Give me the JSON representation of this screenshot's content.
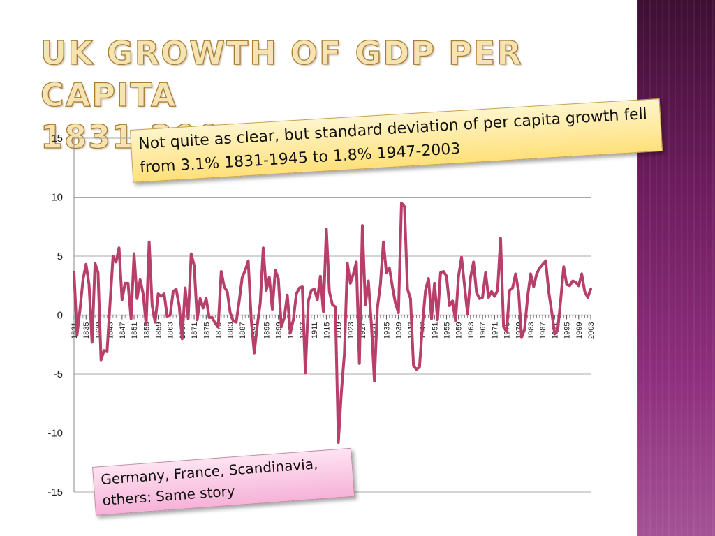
{
  "slide": {
    "title": "UK GROWTH OF GDP PER CAPITA\n1831-2003 (% PER YEAR)"
  },
  "notes": {
    "callout_top": "Not quite as clear, but standard deviation of per capita growth fell from 3.1% 1831-1945 to 1.8% 1947-2003",
    "callout_bottom": "Germany, France, Scandinavia, others: Same story"
  },
  "colors": {
    "series_line": "#b83f6a",
    "accent_band": "#6d1d5e",
    "title_fill": "#f6e3b2"
  },
  "chart_data": {
    "type": "line",
    "title": "",
    "xlabel": "",
    "ylabel": "",
    "ylim": [
      -15,
      15
    ],
    "yticks": [
      15,
      10,
      5,
      0,
      -5,
      -10,
      -15
    ],
    "x_tick_labels": [
      "1831",
      "1835",
      "1839",
      "1843",
      "1847",
      "1851",
      "1855",
      "1859",
      "1863",
      "1867",
      "1871",
      "1875",
      "1879",
      "1883",
      "1887",
      "1891",
      "1895",
      "1899",
      "1903",
      "1907",
      "1911",
      "1915",
      "1919",
      "1923",
      "1927",
      "1931",
      "1935",
      "1939",
      "1943",
      "1947",
      "1951",
      "1955",
      "1959",
      "1963",
      "1967",
      "1971",
      "1975",
      "1979",
      "1983",
      "1987",
      "1991",
      "1995",
      "1999",
      "2003"
    ],
    "grid": "horizontal",
    "legend": "none",
    "series": [
      {
        "x": [
          1831,
          1832,
          1833,
          1834,
          1835,
          1836,
          1837,
          1838,
          1839,
          1840,
          1841,
          1842,
          1843,
          1844,
          1845,
          1846,
          1847,
          1848,
          1849,
          1850,
          1851,
          1852,
          1853,
          1854,
          1855,
          1856,
          1857,
          1858,
          1859,
          1860,
          1861,
          1862,
          1863,
          1864,
          1865,
          1866,
          1867,
          1868,
          1869,
          1870,
          1871,
          1872,
          1873,
          1874,
          1875,
          1876,
          1877,
          1878,
          1879,
          1880,
          1881,
          1882,
          1883,
          1884,
          1885,
          1886,
          1887,
          1888,
          1889,
          1890,
          1891,
          1892,
          1893,
          1894,
          1895,
          1896,
          1897,
          1898,
          1899,
          1900,
          1901,
          1902,
          1903,
          1904,
          1905,
          1906,
          1907,
          1908,
          1909,
          1910,
          1911,
          1912,
          1913,
          1914,
          1915,
          1916,
          1917,
          1918,
          1919,
          1920,
          1921,
          1922,
          1923,
          1924,
          1925,
          1926,
          1927,
          1928,
          1929,
          1930,
          1931,
          1932,
          1933,
          1934,
          1935,
          1936,
          1937,
          1938,
          1939,
          1940,
          1941,
          1942,
          1943,
          1944,
          1945,
          1946,
          1947,
          1948,
          1949,
          1950,
          1951,
          1952,
          1953,
          1954,
          1955,
          1956,
          1957,
          1958,
          1959,
          1960,
          1961,
          1962,
          1963,
          1964,
          1965,
          1966,
          1967,
          1968,
          1969,
          1970,
          1971,
          1972,
          1973,
          1974,
          1975,
          1976,
          1977,
          1978,
          1979,
          1980,
          1981,
          1982,
          1983,
          1984,
          1985,
          1986,
          1987,
          1988,
          1989,
          1990,
          1991,
          1992,
          1993,
          1994,
          1995,
          1996,
          1997,
          1998,
          1999,
          2000,
          2001,
          2002,
          2003
        ],
        "values": [
          3.6,
          -1.7,
          0.5,
          3.0,
          4.3,
          2.6,
          -2.3,
          4.4,
          3.6,
          -3.8,
          -3.0,
          -3.1,
          1.0,
          5.0,
          4.5,
          5.7,
          1.3,
          2.7,
          2.7,
          -0.3,
          5.2,
          1.4,
          3.0,
          1.8,
          -0.8,
          6.2,
          0.8,
          -0.6,
          1.8,
          1.6,
          1.8,
          -0.1,
          0.0,
          2.0,
          2.2,
          0.8,
          -2.0,
          2.3,
          -0.3,
          5.2,
          4.2,
          -0.4,
          1.4,
          0.6,
          1.4,
          -0.2,
          -0.2,
          -0.7,
          -1.0,
          3.7,
          2.4,
          2.0,
          0.2,
          -0.5,
          -0.6,
          1.2,
          3.2,
          3.8,
          4.6,
          -0.4,
          -3.2,
          -0.9,
          1.0,
          5.7,
          2.1,
          3.2,
          0.5,
          3.8,
          3.1,
          -1.0,
          -0.2,
          1.7,
          -1.5,
          -0.4,
          1.8,
          2.3,
          2.4,
          -4.9,
          1.2,
          2.1,
          2.2,
          1.3,
          3.3,
          0.3,
          7.3,
          2.0,
          0.9,
          0.7,
          -10.8,
          -6.5,
          -3.3,
          4.4,
          2.7,
          3.5,
          4.5,
          -4.1,
          7.6,
          0.9,
          2.9,
          -0.8,
          -5.6,
          0.6,
          2.6,
          6.2,
          3.6,
          4.0,
          2.4,
          1.0,
          0.2,
          9.5,
          9.2,
          2.2,
          1.4,
          -4.3,
          -4.6,
          -4.4,
          -0.8,
          2.1,
          3.1,
          -0.3,
          2.7,
          -0.4,
          3.6,
          3.7,
          3.3,
          0.8,
          1.2,
          -0.5,
          3.3,
          4.9,
          2.5,
          0.1,
          3.2,
          4.5,
          1.9,
          1.4,
          1.5,
          3.6,
          1.5,
          2.0,
          1.6,
          2.1,
          6.5,
          -1.0,
          -1.4,
          2.1,
          2.3,
          3.5,
          2.0,
          -1.9,
          -1.2,
          1.6,
          3.5,
          2.4,
          3.5,
          4.0,
          4.3,
          4.6,
          2.0,
          0.3,
          -1.6,
          -1.3,
          1.3,
          4.1,
          2.6,
          2.5,
          2.9,
          2.8,
          2.5,
          3.5,
          2.0,
          1.5,
          2.2
        ]
      }
    ]
  }
}
